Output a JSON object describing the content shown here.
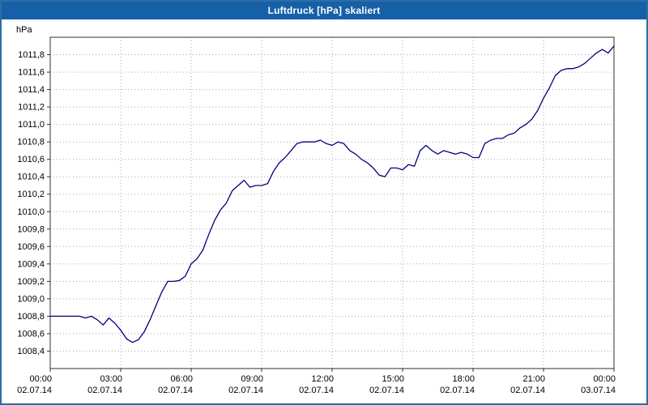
{
  "window": {
    "title": "Luftdruck [hPa] skaliert"
  },
  "colors": {
    "title_bar": "#1660a7",
    "window_border": "#2e6da4",
    "grid": "#a8a8a8",
    "axis": "#303030",
    "line": "#00007f",
    "plot_background": "#ffffff"
  },
  "chart_data": {
    "type": "line",
    "title": "Luftdruck [hPa] skaliert",
    "ylabel": "hPa",
    "xlabel": "",
    "grid": true,
    "legend": "none",
    "xlim_hours": [
      0,
      24
    ],
    "ylim": [
      1008.2,
      1012.0
    ],
    "line_color": "#00007f",
    "background": "#ffffff",
    "y_ticks": [
      {
        "value": 1011.8,
        "label": "1011,8"
      },
      {
        "value": 1011.6,
        "label": "1011,6"
      },
      {
        "value": 1011.4,
        "label": "1011,4"
      },
      {
        "value": 1011.2,
        "label": "1011,2"
      },
      {
        "value": 1011.0,
        "label": "1011,0"
      },
      {
        "value": 1010.8,
        "label": "1010,8"
      },
      {
        "value": 1010.6,
        "label": "1010,6"
      },
      {
        "value": 1010.4,
        "label": "1010,4"
      },
      {
        "value": 1010.2,
        "label": "1010,2"
      },
      {
        "value": 1010.0,
        "label": "1010,0"
      },
      {
        "value": 1009.8,
        "label": "1009,8"
      },
      {
        "value": 1009.6,
        "label": "1009,6"
      },
      {
        "value": 1009.4,
        "label": "1009,4"
      },
      {
        "value": 1009.2,
        "label": "1009,2"
      },
      {
        "value": 1009.0,
        "label": "1009,0"
      },
      {
        "value": 1008.8,
        "label": "1008,8"
      },
      {
        "value": 1008.6,
        "label": "1008,6"
      },
      {
        "value": 1008.4,
        "label": "1008,4"
      }
    ],
    "x_ticks": [
      {
        "hour": 0,
        "time": "00:00",
        "date": "02.07.14"
      },
      {
        "hour": 3,
        "time": "03:00",
        "date": "02.07.14"
      },
      {
        "hour": 6,
        "time": "06:00",
        "date": "02.07.14"
      },
      {
        "hour": 9,
        "time": "09:00",
        "date": "02.07.14"
      },
      {
        "hour": 12,
        "time": "12:00",
        "date": "02.07.14"
      },
      {
        "hour": 15,
        "time": "15:00",
        "date": "02.07.14"
      },
      {
        "hour": 18,
        "time": "18:00",
        "date": "02.07.14"
      },
      {
        "hour": 21,
        "time": "21:00",
        "date": "02.07.14"
      },
      {
        "hour": 24,
        "time": "00:00",
        "date": "03.07.14"
      }
    ],
    "series": [
      {
        "name": "Luftdruck",
        "x_start_hour": 0,
        "x_step_hour": 0.25,
        "y_hpa": [
          1008.8,
          1008.8,
          1008.8,
          1008.8,
          1008.8,
          1008.8,
          1008.78,
          1008.8,
          1008.76,
          1008.7,
          1008.78,
          1008.72,
          1008.64,
          1008.54,
          1008.5,
          1008.53,
          1008.62,
          1008.76,
          1008.92,
          1009.08,
          1009.2,
          1009.2,
          1009.21,
          1009.26,
          1009.4,
          1009.46,
          1009.56,
          1009.74,
          1009.9,
          1010.02,
          1010.1,
          1010.24,
          1010.3,
          1010.36,
          1010.28,
          1010.3,
          1010.3,
          1010.32,
          1010.46,
          1010.56,
          1010.62,
          1010.7,
          1010.78,
          1010.8,
          1010.8,
          1010.8,
          1010.82,
          1010.78,
          1010.76,
          1010.8,
          1010.78,
          1010.7,
          1010.66,
          1010.6,
          1010.56,
          1010.5,
          1010.42,
          1010.4,
          1010.5,
          1010.5,
          1010.48,
          1010.54,
          1010.52,
          1010.7,
          1010.76,
          1010.7,
          1010.66,
          1010.7,
          1010.68,
          1010.66,
          1010.68,
          1010.66,
          1010.62,
          1010.62,
          1010.78,
          1010.82,
          1010.84,
          1010.84,
          1010.88,
          1010.9,
          1010.96,
          1011.0,
          1011.06,
          1011.16,
          1011.3,
          1011.42,
          1011.56,
          1011.62,
          1011.64,
          1011.64,
          1011.66,
          1011.7,
          1011.76,
          1011.82,
          1011.86,
          1011.82,
          1011.9
        ]
      }
    ]
  }
}
